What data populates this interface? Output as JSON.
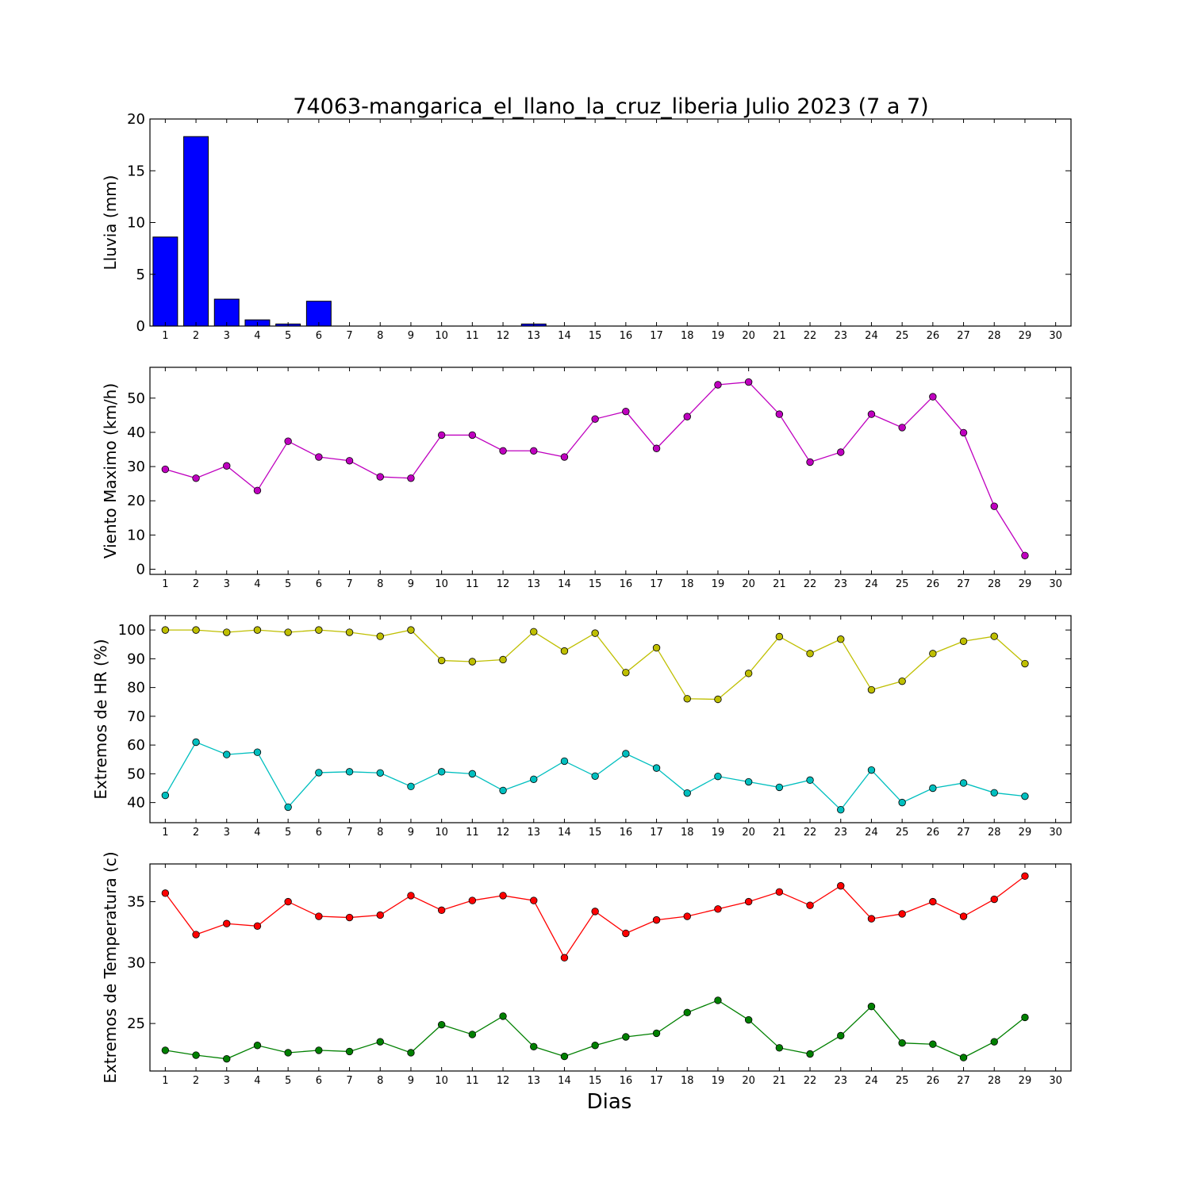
{
  "figure": {
    "title": "74063-mangarica_el_llano_la_cruz_liberia Julio 2023  (7 a 7)",
    "xlabel": "Dias"
  },
  "chart_data": [
    {
      "type": "bar",
      "ylabel": "Lluvia (mm)",
      "categories": [
        1,
        2,
        3,
        4,
        5,
        6,
        7,
        8,
        9,
        10,
        11,
        12,
        13,
        14,
        15,
        16,
        17,
        18,
        19,
        20,
        21,
        22,
        23,
        24,
        25,
        26,
        27,
        28,
        29,
        30
      ],
      "xlim": [
        0.5,
        30.5
      ],
      "ylim": [
        0,
        20
      ],
      "yticks": [
        0,
        5,
        10,
        15,
        20
      ],
      "series": [
        {
          "color": "#0000ff",
          "values": [
            8.6,
            18.3,
            2.6,
            0.6,
            0.2,
            2.4,
            0,
            0,
            0,
            0,
            0,
            0,
            0.2,
            0,
            0,
            0,
            0,
            0,
            0,
            0,
            0,
            0,
            0,
            0,
            0,
            0,
            0,
            0,
            0,
            0
          ]
        }
      ]
    },
    {
      "type": "line",
      "ylabel": "Viento Maximo (km/h)",
      "x": [
        1,
        2,
        3,
        4,
        5,
        6,
        7,
        8,
        9,
        10,
        11,
        12,
        13,
        14,
        15,
        16,
        17,
        18,
        19,
        20,
        21,
        22,
        23,
        24,
        25,
        26,
        27,
        28,
        29
      ],
      "xticks": [
        1,
        2,
        3,
        4,
        5,
        6,
        7,
        8,
        9,
        10,
        11,
        12,
        13,
        14,
        15,
        16,
        17,
        18,
        19,
        20,
        21,
        22,
        23,
        24,
        25,
        26,
        27,
        28,
        29,
        30
      ],
      "xlim": [
        0.5,
        30.5
      ],
      "ylim": [
        -1.5,
        59
      ],
      "yticks": [
        0,
        10,
        20,
        30,
        40,
        50
      ],
      "series": [
        {
          "color": "#bf00bf",
          "values": [
            29.2,
            26.6,
            30.2,
            23.0,
            37.4,
            32.8,
            31.7,
            27.0,
            26.6,
            39.2,
            39.2,
            34.6,
            34.6,
            32.8,
            43.9,
            46.1,
            35.3,
            44.6,
            53.9,
            54.7,
            45.3,
            31.3,
            34.2,
            45.3,
            41.4,
            50.4,
            39.9,
            18.4,
            4.0
          ]
        }
      ]
    },
    {
      "type": "line",
      "ylabel": "Extremos de HR (%)",
      "x": [
        1,
        2,
        3,
        4,
        5,
        6,
        7,
        8,
        9,
        10,
        11,
        12,
        13,
        14,
        15,
        16,
        17,
        18,
        19,
        20,
        21,
        22,
        23,
        24,
        25,
        26,
        27,
        28,
        29
      ],
      "xticks": [
        1,
        2,
        3,
        4,
        5,
        6,
        7,
        8,
        9,
        10,
        11,
        12,
        13,
        14,
        15,
        16,
        17,
        18,
        19,
        20,
        21,
        22,
        23,
        24,
        25,
        26,
        27,
        28,
        29,
        30
      ],
      "xlim": [
        0.5,
        30.5
      ],
      "ylim": [
        33,
        105
      ],
      "yticks": [
        40,
        50,
        60,
        70,
        80,
        90,
        100
      ],
      "series": [
        {
          "color": "#bfbf00",
          "values": [
            100,
            100,
            99.2,
            100,
            99.2,
            100,
            99.2,
            97.8,
            100,
            89.4,
            89.0,
            89.7,
            99.4,
            92.7,
            98.9,
            85.2,
            93.8,
            76.1,
            75.9,
            84.9,
            97.7,
            91.8,
            96.8,
            79.2,
            82.2,
            91.8,
            96.1,
            97.8,
            88.3
          ]
        },
        {
          "color": "#00bfbf",
          "values": [
            42.5,
            61.0,
            56.7,
            57.5,
            38.4,
            50.4,
            50.7,
            50.3,
            45.6,
            50.7,
            50.0,
            44.2,
            48.1,
            54.4,
            49.2,
            57.0,
            52.0,
            43.3,
            49.1,
            47.2,
            45.3,
            47.8,
            37.5,
            51.3,
            40.0,
            45.0,
            46.8,
            43.4,
            42.2
          ]
        }
      ]
    },
    {
      "type": "line",
      "ylabel": "Extremos de Temperatura (c)",
      "x": [
        1,
        2,
        3,
        4,
        5,
        6,
        7,
        8,
        9,
        10,
        11,
        12,
        13,
        14,
        15,
        16,
        17,
        18,
        19,
        20,
        21,
        22,
        23,
        24,
        25,
        26,
        27,
        28,
        29
      ],
      "xticks": [
        1,
        2,
        3,
        4,
        5,
        6,
        7,
        8,
        9,
        10,
        11,
        12,
        13,
        14,
        15,
        16,
        17,
        18,
        19,
        20,
        21,
        22,
        23,
        24,
        25,
        26,
        27,
        28,
        29,
        30
      ],
      "xlim": [
        0.5,
        30.5
      ],
      "ylim": [
        21.1,
        38.1
      ],
      "yticks": [
        25,
        30,
        35
      ],
      "series": [
        {
          "color": "#ff0000",
          "values": [
            35.7,
            32.3,
            33.2,
            33.0,
            35.0,
            33.8,
            33.7,
            33.9,
            35.5,
            34.3,
            35.1,
            35.5,
            35.1,
            30.4,
            34.2,
            32.4,
            33.5,
            33.8,
            34.4,
            35.0,
            35.8,
            34.7,
            36.3,
            33.6,
            34.0,
            35.0,
            33.8,
            35.2,
            37.1
          ]
        },
        {
          "color": "#008000",
          "values": [
            22.8,
            22.4,
            22.1,
            23.2,
            22.6,
            22.8,
            22.7,
            23.5,
            22.6,
            24.9,
            24.1,
            25.6,
            23.1,
            22.3,
            23.2,
            23.9,
            24.2,
            25.9,
            26.9,
            25.3,
            23.0,
            22.5,
            24.0,
            26.4,
            23.4,
            23.3,
            22.2,
            23.5,
            25.5
          ]
        }
      ]
    }
  ]
}
